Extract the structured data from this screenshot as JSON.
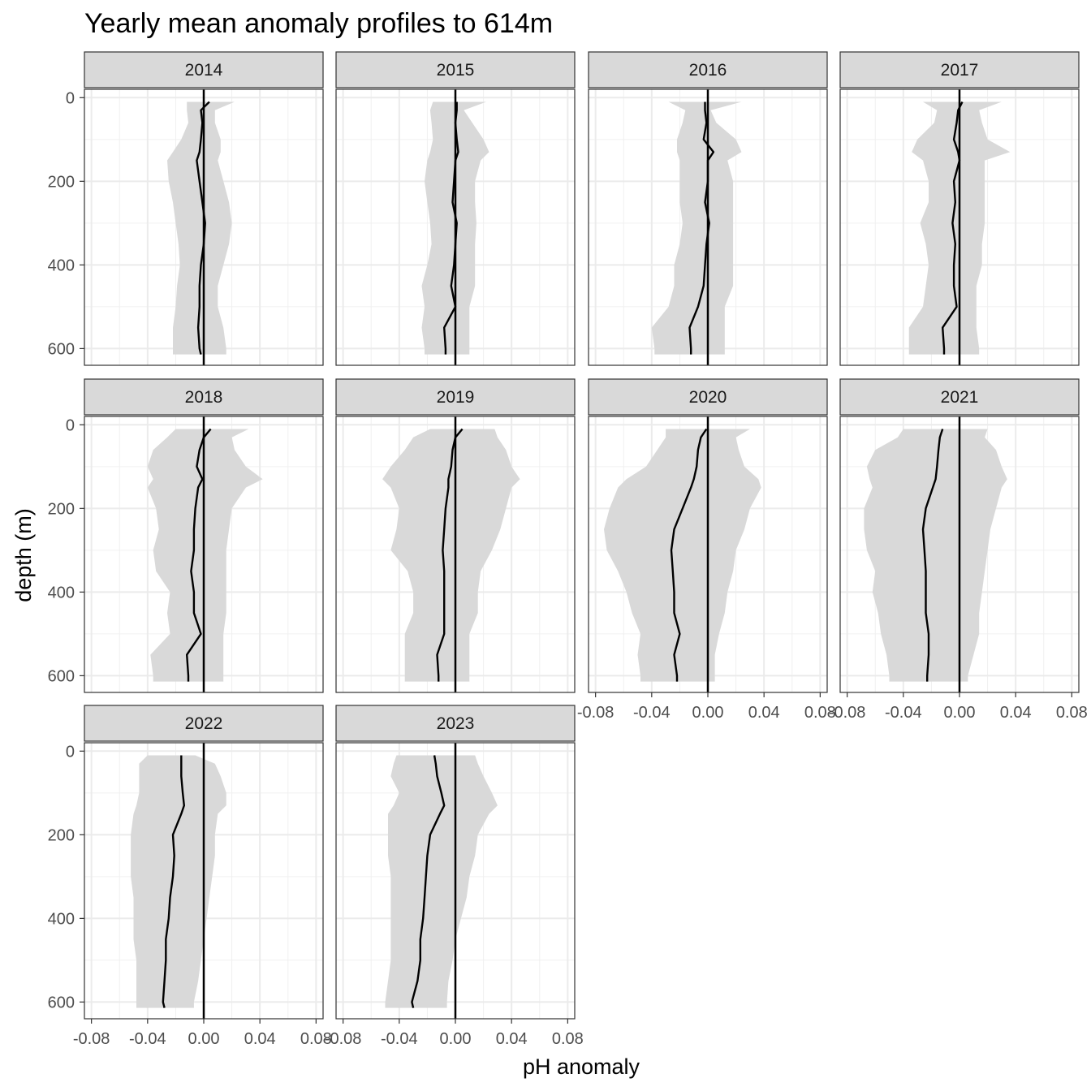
{
  "chart_data": {
    "type": "line",
    "title": "Yearly mean anomaly profiles to 614m",
    "xlabel": "pH anomaly",
    "ylabel": "depth (m)",
    "xlim": [
      -0.085,
      0.085
    ],
    "ylim": [
      640,
      -20
    ],
    "y_reversed": true,
    "x_ticks": [
      -0.08,
      -0.04,
      0.0,
      0.04,
      0.08
    ],
    "x_tick_labels": [
      "-0.08",
      "-0.04",
      "0.00",
      "0.04",
      "0.08"
    ],
    "y_ticks": [
      0,
      200,
      400,
      600
    ],
    "y_tick_labels": [
      "0",
      "200",
      "400",
      "600"
    ],
    "grid": true,
    "reference_line_x": 0,
    "facets": [
      {
        "label": "2014",
        "depth": [
          10,
          30,
          60,
          100,
          130,
          150,
          200,
          250,
          300,
          350,
          400,
          450,
          500,
          550,
          600,
          614
        ],
        "mean": [
          0.004,
          -0.002,
          -0.001,
          -0.002,
          -0.003,
          -0.005,
          -0.003,
          -0.001,
          0.001,
          0.0,
          -0.002,
          -0.003,
          -0.003,
          -0.004,
          -0.003,
          -0.002
        ],
        "lower": [
          -0.012,
          -0.012,
          -0.011,
          -0.016,
          -0.022,
          -0.026,
          -0.025,
          -0.022,
          -0.02,
          -0.018,
          -0.017,
          -0.019,
          -0.02,
          -0.022,
          -0.022,
          -0.022
        ],
        "upper": [
          0.022,
          0.008,
          0.008,
          0.012,
          0.012,
          0.01,
          0.014,
          0.018,
          0.02,
          0.018,
          0.014,
          0.01,
          0.01,
          0.014,
          0.016,
          0.016
        ]
      },
      {
        "label": "2015",
        "depth": [
          10,
          30,
          60,
          100,
          130,
          150,
          200,
          250,
          300,
          350,
          400,
          450,
          500,
          550,
          600,
          614
        ],
        "mean": [
          0.001,
          0.001,
          0.0,
          0.001,
          0.002,
          0.0,
          -0.001,
          -0.002,
          0.001,
          0.0,
          -0.001,
          -0.003,
          0.0,
          -0.008,
          -0.007,
          -0.007
        ],
        "lower": [
          -0.016,
          -0.018,
          -0.017,
          -0.016,
          -0.018,
          -0.02,
          -0.022,
          -0.02,
          -0.018,
          -0.017,
          -0.02,
          -0.024,
          -0.022,
          -0.024,
          -0.022,
          -0.022
        ],
        "upper": [
          0.022,
          0.006,
          0.012,
          0.02,
          0.024,
          0.018,
          0.014,
          0.014,
          0.015,
          0.014,
          0.014,
          0.014,
          0.01,
          0.01,
          0.01,
          0.01
        ]
      },
      {
        "label": "2016",
        "depth": [
          10,
          30,
          60,
          100,
          130,
          150,
          200,
          250,
          300,
          350,
          400,
          450,
          500,
          550,
          600,
          614
        ],
        "mean": [
          -0.002,
          -0.002,
          -0.001,
          -0.003,
          0.004,
          0.0,
          0.0,
          -0.002,
          0.001,
          -0.001,
          -0.002,
          -0.003,
          -0.007,
          -0.013,
          -0.012,
          -0.012
        ],
        "lower": [
          -0.028,
          -0.016,
          -0.018,
          -0.022,
          -0.022,
          -0.02,
          -0.02,
          -0.02,
          -0.018,
          -0.02,
          -0.024,
          -0.024,
          -0.028,
          -0.04,
          -0.038,
          -0.038
        ],
        "upper": [
          0.024,
          0.002,
          0.006,
          0.02,
          0.024,
          0.014,
          0.018,
          0.018,
          0.018,
          0.018,
          0.018,
          0.018,
          0.012,
          0.012,
          0.012,
          0.012
        ]
      },
      {
        "label": "2017",
        "depth": [
          10,
          30,
          60,
          100,
          130,
          150,
          200,
          250,
          300,
          350,
          400,
          450,
          500,
          550,
          600,
          614
        ],
        "mean": [
          0.002,
          -0.001,
          -0.002,
          -0.004,
          -0.001,
          0.0,
          -0.004,
          -0.003,
          -0.005,
          -0.003,
          -0.004,
          -0.004,
          -0.002,
          -0.012,
          -0.011,
          -0.011
        ],
        "lower": [
          -0.026,
          -0.016,
          -0.018,
          -0.03,
          -0.034,
          -0.026,
          -0.022,
          -0.022,
          -0.028,
          -0.024,
          -0.022,
          -0.024,
          -0.026,
          -0.036,
          -0.036,
          -0.036
        ],
        "upper": [
          0.03,
          0.014,
          0.016,
          0.02,
          0.036,
          0.018,
          0.018,
          0.018,
          0.018,
          0.016,
          0.016,
          0.012,
          0.012,
          0.012,
          0.014,
          0.014
        ]
      },
      {
        "label": "2018",
        "depth": [
          10,
          30,
          60,
          100,
          130,
          150,
          200,
          250,
          300,
          350,
          400,
          450,
          500,
          550,
          600,
          614
        ],
        "mean": [
          0.005,
          0.0,
          -0.003,
          -0.005,
          -0.001,
          -0.004,
          -0.006,
          -0.007,
          -0.007,
          -0.009,
          -0.007,
          -0.007,
          -0.002,
          -0.012,
          -0.011,
          -0.011
        ],
        "lower": [
          -0.02,
          -0.026,
          -0.036,
          -0.04,
          -0.036,
          -0.04,
          -0.034,
          -0.032,
          -0.036,
          -0.034,
          -0.024,
          -0.026,
          -0.024,
          -0.038,
          -0.036,
          -0.036
        ],
        "upper": [
          0.032,
          0.02,
          0.022,
          0.03,
          0.042,
          0.03,
          0.02,
          0.018,
          0.016,
          0.016,
          0.016,
          0.016,
          0.014,
          0.014,
          0.014,
          0.014
        ]
      },
      {
        "label": "2019",
        "depth": [
          10,
          30,
          60,
          100,
          130,
          150,
          200,
          250,
          300,
          350,
          400,
          450,
          500,
          550,
          600,
          614
        ],
        "mean": [
          0.005,
          0.0,
          -0.002,
          -0.003,
          -0.005,
          -0.005,
          -0.007,
          -0.008,
          -0.009,
          -0.008,
          -0.008,
          -0.008,
          -0.008,
          -0.013,
          -0.012,
          -0.012
        ],
        "lower": [
          -0.018,
          -0.03,
          -0.036,
          -0.046,
          -0.052,
          -0.046,
          -0.04,
          -0.042,
          -0.046,
          -0.034,
          -0.03,
          -0.03,
          -0.036,
          -0.036,
          -0.036,
          -0.036
        ],
        "upper": [
          0.028,
          0.03,
          0.036,
          0.04,
          0.046,
          0.04,
          0.036,
          0.032,
          0.026,
          0.018,
          0.016,
          0.016,
          0.01,
          0.01,
          0.01,
          0.01
        ]
      },
      {
        "label": "2020",
        "depth": [
          10,
          30,
          60,
          100,
          130,
          150,
          200,
          250,
          300,
          350,
          400,
          450,
          500,
          550,
          600,
          614
        ],
        "mean": [
          -0.001,
          -0.005,
          -0.007,
          -0.008,
          -0.01,
          -0.012,
          -0.018,
          -0.024,
          -0.026,
          -0.025,
          -0.024,
          -0.024,
          -0.02,
          -0.024,
          -0.022,
          -0.022
        ],
        "lower": [
          -0.03,
          -0.03,
          -0.036,
          -0.044,
          -0.058,
          -0.064,
          -0.07,
          -0.074,
          -0.072,
          -0.064,
          -0.058,
          -0.054,
          -0.048,
          -0.05,
          -0.048,
          -0.048
        ],
        "upper": [
          0.03,
          0.02,
          0.022,
          0.026,
          0.036,
          0.038,
          0.03,
          0.026,
          0.02,
          0.018,
          0.014,
          0.012,
          0.008,
          0.005,
          0.005,
          0.005
        ]
      },
      {
        "label": "2021",
        "depth": [
          10,
          30,
          60,
          100,
          130,
          150,
          200,
          250,
          300,
          350,
          400,
          450,
          500,
          550,
          600,
          614
        ],
        "mean": [
          -0.012,
          -0.014,
          -0.015,
          -0.016,
          -0.017,
          -0.019,
          -0.024,
          -0.026,
          -0.025,
          -0.024,
          -0.024,
          -0.024,
          -0.022,
          -0.022,
          -0.023,
          -0.023
        ],
        "lower": [
          -0.04,
          -0.044,
          -0.06,
          -0.066,
          -0.064,
          -0.062,
          -0.068,
          -0.068,
          -0.066,
          -0.06,
          -0.062,
          -0.058,
          -0.056,
          -0.052,
          -0.05,
          -0.05
        ],
        "upper": [
          0.02,
          0.018,
          0.026,
          0.03,
          0.034,
          0.03,
          0.026,
          0.022,
          0.02,
          0.018,
          0.016,
          0.014,
          0.014,
          0.01,
          0.006,
          0.006
        ]
      },
      {
        "label": "2022",
        "depth": [
          10,
          30,
          60,
          100,
          130,
          150,
          200,
          250,
          300,
          350,
          400,
          450,
          500,
          550,
          600,
          614
        ],
        "mean": [
          -0.016,
          -0.016,
          -0.016,
          -0.015,
          -0.014,
          -0.016,
          -0.022,
          -0.021,
          -0.022,
          -0.024,
          -0.025,
          -0.027,
          -0.027,
          -0.028,
          -0.029,
          -0.028
        ],
        "lower": [
          -0.04,
          -0.046,
          -0.046,
          -0.046,
          -0.048,
          -0.05,
          -0.052,
          -0.052,
          -0.052,
          -0.05,
          -0.05,
          -0.05,
          -0.048,
          -0.048,
          -0.048,
          -0.048
        ],
        "upper": [
          -0.006,
          0.008,
          0.012,
          0.016,
          0.016,
          0.01,
          0.008,
          0.008,
          0.006,
          0.004,
          0.002,
          0.0,
          -0.002,
          -0.004,
          -0.007,
          -0.007
        ]
      },
      {
        "label": "2023",
        "depth": [
          10,
          30,
          60,
          100,
          130,
          150,
          200,
          250,
          300,
          350,
          400,
          450,
          500,
          550,
          600,
          614
        ],
        "mean": [
          -0.015,
          -0.014,
          -0.013,
          -0.01,
          -0.008,
          -0.011,
          -0.018,
          -0.02,
          -0.021,
          -0.022,
          -0.023,
          -0.025,
          -0.025,
          -0.027,
          -0.031,
          -0.03
        ],
        "lower": [
          -0.042,
          -0.044,
          -0.046,
          -0.04,
          -0.044,
          -0.048,
          -0.048,
          -0.048,
          -0.046,
          -0.046,
          -0.046,
          -0.046,
          -0.046,
          -0.048,
          -0.05,
          -0.05
        ],
        "upper": [
          0.014,
          0.016,
          0.02,
          0.026,
          0.03,
          0.024,
          0.016,
          0.014,
          0.01,
          0.008,
          0.004,
          0.0,
          -0.002,
          -0.005,
          -0.006,
          -0.006
        ]
      }
    ],
    "band_color": "#d9d9d9",
    "line_color": "#000000",
    "strip_color": "#d9d9d9"
  }
}
